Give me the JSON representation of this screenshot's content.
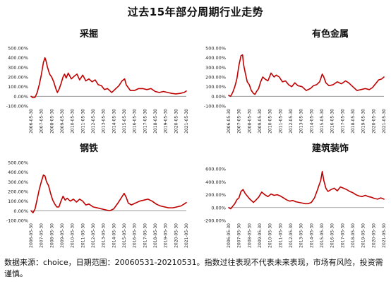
{
  "title": "过去15年部分周期行业走势",
  "footnote": "数据来源：choice，日期范围：20060531-20210531。指数过往表现不代表未来表现，市场有风险，投资需谨慎。",
  "colors": {
    "line": "#c00000",
    "axis": "#888888",
    "text": "#222222"
  },
  "chart_data": [
    {
      "type": "line",
      "title": "采掘",
      "x_ticks": [
        "2006-05-30",
        "2007-05-30",
        "2008-05-30",
        "2009-05-30",
        "2010-05-30",
        "2011-05-30",
        "2012-05-30",
        "2013-05-30",
        "2014-05-30",
        "2015-05-30",
        "2016-05-30",
        "2017-05-30",
        "2018-05-30",
        "2019-05-30",
        "2020-05-30",
        "2021-05-30"
      ],
      "y_ticks": [
        -100,
        0,
        100,
        200,
        300,
        400,
        500
      ],
      "y_tick_labels": [
        "-100.00%",
        "0.00%",
        "100.00%",
        "200.00%",
        "300.00%",
        "400.00%",
        "500.00%"
      ],
      "ylim": [
        -100,
        500
      ],
      "x": [
        2006.41,
        2006.6,
        2006.8,
        2007.0,
        2007.2,
        2007.4,
        2007.6,
        2007.75,
        2007.85,
        2008.0,
        2008.2,
        2008.4,
        2008.6,
        2008.8,
        2008.95,
        2009.1,
        2009.3,
        2009.5,
        2009.65,
        2009.8,
        2010.0,
        2010.3,
        2010.6,
        2010.85,
        2011.1,
        2011.4,
        2011.7,
        2012.0,
        2012.3,
        2012.6,
        2012.9,
        2013.2,
        2013.5,
        2013.8,
        2014.2,
        2014.6,
        2014.9,
        2015.2,
        2015.45,
        2015.6,
        2015.8,
        2016.0,
        2016.4,
        2016.8,
        2017.2,
        2017.6,
        2018.0,
        2018.4,
        2018.8,
        2019.2,
        2019.6,
        2020.0,
        2020.4,
        2020.8,
        2021.2,
        2021.41
      ],
      "y": [
        0,
        -15,
        -10,
        40,
        120,
        220,
        350,
        400,
        370,
        300,
        230,
        200,
        150,
        80,
        40,
        70,
        130,
        200,
        230,
        190,
        240,
        180,
        210,
        230,
        170,
        220,
        160,
        180,
        150,
        170,
        120,
        110,
        70,
        80,
        40,
        80,
        110,
        160,
        180,
        120,
        90,
        60,
        60,
        80,
        80,
        70,
        80,
        50,
        40,
        50,
        40,
        30,
        25,
        30,
        40,
        55
      ]
    },
    {
      "type": "line",
      "title": "有色金属",
      "x_ticks": [
        "2006-05-30",
        "2007-05-30",
        "2008-05-30",
        "2009-05-30",
        "2010-05-30",
        "2011-05-30",
        "2012-05-30",
        "2013-05-30",
        "2014-05-30",
        "2015-05-30",
        "2016-05-30",
        "2017-05-30",
        "2018-05-30",
        "2019-05-30",
        "2020-05-30",
        "2021-05-30"
      ],
      "y_ticks": [
        -100,
        0,
        100,
        200,
        300,
        400,
        500
      ],
      "y_tick_labels": [
        "-100.00%",
        "0.00%",
        "100.00%",
        "200.00%",
        "300.00%",
        "400.00%",
        "500.00%"
      ],
      "ylim": [
        -100,
        500
      ],
      "x": [
        2006.41,
        2006.6,
        2006.8,
        2007.0,
        2007.2,
        2007.4,
        2007.6,
        2007.75,
        2007.85,
        2008.0,
        2008.2,
        2008.4,
        2008.6,
        2008.8,
        2008.95,
        2009.1,
        2009.3,
        2009.5,
        2009.7,
        2009.9,
        2010.2,
        2010.5,
        2010.8,
        2011.0,
        2011.3,
        2011.6,
        2011.9,
        2012.2,
        2012.5,
        2012.8,
        2013.1,
        2013.5,
        2013.9,
        2014.3,
        2014.6,
        2014.9,
        2015.2,
        2015.45,
        2015.6,
        2015.8,
        2016.1,
        2016.5,
        2016.9,
        2017.3,
        2017.7,
        2018.0,
        2018.4,
        2018.8,
        2019.2,
        2019.6,
        2020.0,
        2020.3,
        2020.6,
        2020.9,
        2021.2,
        2021.41
      ],
      "y": [
        10,
        0,
        40,
        100,
        180,
        320,
        420,
        430,
        330,
        250,
        150,
        120,
        60,
        30,
        20,
        50,
        80,
        150,
        200,
        180,
        160,
        240,
        200,
        220,
        200,
        150,
        160,
        120,
        100,
        140,
        110,
        100,
        60,
        80,
        110,
        120,
        150,
        230,
        200,
        140,
        110,
        120,
        150,
        130,
        160,
        140,
        100,
        60,
        70,
        80,
        70,
        90,
        130,
        170,
        180,
        200
      ]
    },
    {
      "type": "line",
      "title": "钢铁",
      "x_ticks": [
        "2006-05-30",
        "2007-05-30",
        "2008-05-30",
        "2009-05-30",
        "2010-05-30",
        "2011-05-30",
        "2012-05-30",
        "2013-05-30",
        "2014-05-30",
        "2015-05-30",
        "2016-05-30",
        "2017-05-30",
        "2018-05-30",
        "2019-05-30",
        "2020-05-30",
        "2021-05-30"
      ],
      "y_ticks": [
        -100,
        0,
        100,
        200,
        300,
        400,
        500
      ],
      "y_tick_labels": [
        "-100.00%",
        "0.00%",
        "100.00%",
        "200.00%",
        "300.00%",
        "400.00%",
        "500.00%"
      ],
      "ylim": [
        -100,
        500
      ],
      "x": [
        2006.41,
        2006.6,
        2006.8,
        2007.0,
        2007.2,
        2007.4,
        2007.6,
        2007.75,
        2007.9,
        2008.1,
        2008.3,
        2008.5,
        2008.7,
        2008.9,
        2009.1,
        2009.3,
        2009.5,
        2009.7,
        2009.9,
        2010.2,
        2010.5,
        2010.8,
        2011.1,
        2011.4,
        2011.7,
        2012.0,
        2012.4,
        2012.8,
        2013.2,
        2013.6,
        2014.0,
        2014.4,
        2014.8,
        2015.1,
        2015.4,
        2015.6,
        2015.8,
        2016.1,
        2016.5,
        2016.9,
        2017.3,
        2017.7,
        2018.1,
        2018.5,
        2018.9,
        2019.3,
        2019.7,
        2020.1,
        2020.5,
        2020.9,
        2021.2,
        2021.41
      ],
      "y": [
        0,
        -20,
        20,
        120,
        220,
        300,
        370,
        360,
        300,
        260,
        180,
        110,
        70,
        40,
        40,
        100,
        150,
        110,
        130,
        100,
        120,
        90,
        120,
        100,
        60,
        70,
        40,
        30,
        20,
        10,
        0,
        20,
        80,
        130,
        180,
        140,
        80,
        60,
        80,
        100,
        110,
        120,
        100,
        70,
        50,
        40,
        30,
        30,
        40,
        50,
        70,
        85
      ]
    },
    {
      "type": "line",
      "title": "建筑装饰",
      "x_ticks": [
        "2006-05-30",
        "2007-05-30",
        "2008-05-30",
        "2009-05-30",
        "2010-05-30",
        "2011-05-30",
        "2012-05-30",
        "2013-05-30",
        "2014-05-30",
        "2015-05-30",
        "2016-05-30",
        "2017-05-30",
        "2018-05-30",
        "2019-05-30",
        "2020-05-30",
        "2021-05-30"
      ],
      "y_ticks": [
        -200,
        0,
        200,
        400,
        600
      ],
      "y_tick_labels": [
        "-200.00%",
        "0.00%",
        "200.00%",
        "400.00%",
        "600.00%"
      ],
      "ylim": [
        -200,
        700
      ],
      "x": [
        2006.41,
        2006.6,
        2006.8,
        2007.0,
        2007.2,
        2007.4,
        2007.6,
        2007.8,
        2008.0,
        2008.2,
        2008.4,
        2008.6,
        2008.8,
        2009.0,
        2009.3,
        2009.6,
        2009.9,
        2010.2,
        2010.5,
        2010.8,
        2011.1,
        2011.4,
        2011.7,
        2012.0,
        2012.3,
        2012.6,
        2012.9,
        2013.2,
        2013.5,
        2013.8,
        2014.1,
        2014.4,
        2014.7,
        2014.95,
        2015.1,
        2015.3,
        2015.45,
        2015.6,
        2015.8,
        2016.0,
        2016.3,
        2016.6,
        2016.9,
        2017.2,
        2017.5,
        2017.8,
        2018.1,
        2018.4,
        2018.7,
        2019.0,
        2019.3,
        2019.6,
        2019.9,
        2020.2,
        2020.5,
        2020.8,
        2021.1,
        2021.41
      ],
      "y": [
        0,
        -20,
        20,
        60,
        120,
        150,
        250,
        280,
        220,
        180,
        140,
        110,
        80,
        110,
        160,
        240,
        200,
        170,
        210,
        190,
        200,
        180,
        150,
        120,
        100,
        110,
        90,
        80,
        70,
        60,
        60,
        80,
        150,
        260,
        330,
        420,
        560,
        420,
        300,
        250,
        280,
        300,
        260,
        320,
        300,
        280,
        250,
        230,
        200,
        180,
        170,
        190,
        170,
        160,
        140,
        130,
        150,
        130
      ]
    }
  ]
}
